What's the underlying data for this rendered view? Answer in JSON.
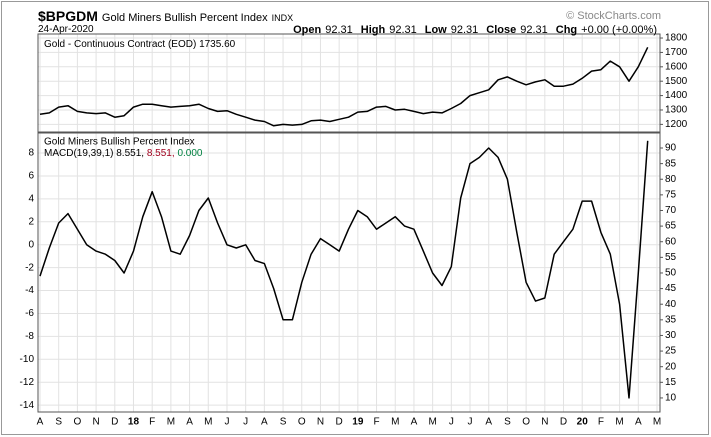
{
  "header": {
    "symbol": "$BPGDM",
    "name": "Gold Miners Bullish Percent Index",
    "exchange": "INDX",
    "date": "24-Apr-2020",
    "copyright": "© StockCharts.com",
    "quote": [
      {
        "label": "Open",
        "value": "92.31"
      },
      {
        "label": "High",
        "value": "92.31"
      },
      {
        "label": "Low",
        "value": "92.31"
      },
      {
        "label": "Close",
        "value": "92.31"
      },
      {
        "label": "Chg",
        "value": "+0.00 (+0.00%)"
      }
    ]
  },
  "chart_data": [
    {
      "type": "line",
      "series": [
        {
          "name": "Gold - Continuous Contract (EOD)",
          "last_label": "1735.60",
          "color": "#000000",
          "axis": "y2",
          "values": [
            1270,
            1280,
            1320,
            1330,
            1290,
            1280,
            1275,
            1280,
            1250,
            1260,
            1320,
            1340,
            1340,
            1330,
            1320,
            1325,
            1330,
            1340,
            1310,
            1290,
            1295,
            1270,
            1250,
            1230,
            1220,
            1190,
            1200,
            1195,
            1200,
            1225,
            1230,
            1220,
            1235,
            1250,
            1285,
            1290,
            1320,
            1325,
            1300,
            1305,
            1290,
            1275,
            1285,
            1280,
            1310,
            1345,
            1400,
            1420,
            1440,
            1510,
            1530,
            1500,
            1475,
            1495,
            1510,
            1465,
            1465,
            1480,
            1520,
            1570,
            1580,
            1640,
            1600,
            1500,
            1600,
            1735.6,
            null
          ]
        }
      ],
      "y2lim": [
        1147,
        1828
      ],
      "y2ticks": [
        1200,
        1300,
        1400,
        1500,
        1600,
        1700,
        1800
      ],
      "grid": true
    },
    {
      "type": "line",
      "title": "Gold Miners Bullish Percent Index",
      "categories": [
        "A",
        null,
        "S",
        null,
        "O",
        null,
        "N",
        null,
        "D",
        null,
        "18",
        null,
        "F",
        null,
        "M",
        null,
        "A",
        null,
        "M",
        null,
        "J",
        null,
        "J",
        null,
        "A",
        null,
        "S",
        null,
        "O",
        null,
        "N",
        null,
        "D",
        null,
        "19",
        null,
        "F",
        null,
        "M",
        null,
        "A",
        null,
        "M",
        null,
        "J",
        null,
        "J",
        null,
        "A",
        null,
        "S",
        null,
        "O",
        null,
        "N",
        null,
        "D",
        null,
        "20",
        null,
        "F",
        null,
        "M",
        null,
        "A",
        null,
        "M"
      ],
      "series": [
        {
          "name": "Gold Miners Bullish Percent Index",
          "color": "#000000",
          "axis": "y2",
          "values": [
            49,
            58,
            66,
            69,
            64,
            59,
            57,
            56,
            54,
            50,
            57,
            68,
            76,
            68,
            57,
            56,
            62,
            70,
            74,
            66,
            59,
            58,
            59,
            54,
            53,
            45,
            35,
            35,
            47,
            56,
            61,
            59,
            57,
            64,
            70,
            68,
            64,
            66,
            68,
            65,
            64,
            57,
            50,
            46,
            52,
            74,
            85,
            87,
            90,
            87,
            80,
            63,
            47,
            41,
            42,
            56,
            60,
            64,
            73,
            73,
            63,
            56,
            40,
            10,
            50,
            92.31,
            null
          ]
        }
      ],
      "macd": {
        "label": "MACD(19,39,1)",
        "values": [
          8.551,
          8.551,
          0
        ],
        "value_labels": [
          "8.551,",
          "8.551,",
          "0.000"
        ],
        "colors": [
          "#000000",
          "#a0001e",
          "#008040"
        ]
      },
      "ylim": [
        -14.6,
        9.75
      ],
      "yticks": [
        8,
        6,
        4,
        2,
        0,
        -2,
        -4,
        -6,
        -8,
        -10,
        -12,
        -14
      ],
      "y2lim": [
        5.5,
        94.8
      ],
      "y2ticks": [
        10,
        15,
        20,
        25,
        30,
        35,
        40,
        45,
        50,
        55,
        60,
        65,
        70,
        75,
        80,
        85,
        90
      ],
      "grid": true
    }
  ]
}
